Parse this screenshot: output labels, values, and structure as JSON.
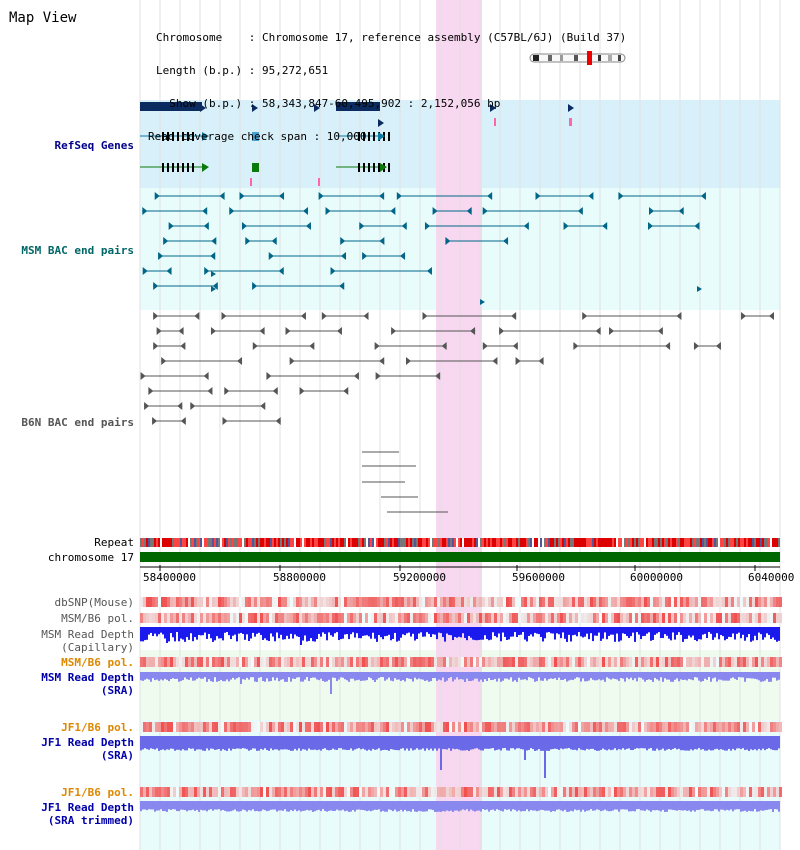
{
  "page_title": "Map View",
  "info": {
    "chromosome_line": "Chromosome    : Chromosome 17, reference assembly (C57BL/6J) (Build 37)",
    "length_line": "Length (b.p.) : 95,272,651",
    "show_line": "  Show (b.p.) : 58,343,847-60,495,902 : 2,152,056 bp",
    "coverage_line": "Read coverage check span : 10,000"
  },
  "tracks": {
    "refseq": "RefSeq Genes",
    "msm_bac": "MSM BAC end pairs",
    "b6n_bac": "B6N BAC end pairs",
    "repeat": "Repeat",
    "chromosome": "chromosome 17",
    "dbsnp": "dbSNP(Mouse)",
    "msm_b6_pol_1": "MSM/B6 pol.",
    "msm_read_depth_cap_1": "MSM Read Depth",
    "msm_read_depth_cap_2": "(Capillary)",
    "msm_b6_pol_2": "MSM/B6 pol.",
    "msm_read_depth_sra_1": "MSM Read Depth",
    "msm_read_depth_sra_2": "(SRA)",
    "jf1_b6_pol_1": "JF1/B6 pol.",
    "jf1_read_depth_sra_1": "JF1 Read Depth",
    "jf1_read_depth_sra_2": "(SRA)",
    "jf1_b6_pol_2": "JF1/B6 pol.",
    "jf1_read_depth_trim_1": "JF1 Read Depth",
    "jf1_read_depth_trim_2": "(SRA trimmed)"
  },
  "axis_ticks": [
    "58400000",
    "58800000",
    "59200000",
    "59600000",
    "60000000",
    "6040000"
  ],
  "colors": {
    "highlight": "#f8d8f0",
    "refseq_bg": "#d8f0fa",
    "bac_bg": "#e8fcfc",
    "msm_bac": "#006688",
    "b6n_bac": "#555555",
    "refseq_label": "#000088",
    "msm_label": "#006666",
    "b6n_label": "#555555",
    "orange_label": "#dd8800",
    "blue_label": "#0000aa",
    "gene_fill": "#0a2a60",
    "depth_dark": "#1a1aee",
    "depth_light": "#8888ee",
    "chromosome_bar": "#006600"
  }
}
